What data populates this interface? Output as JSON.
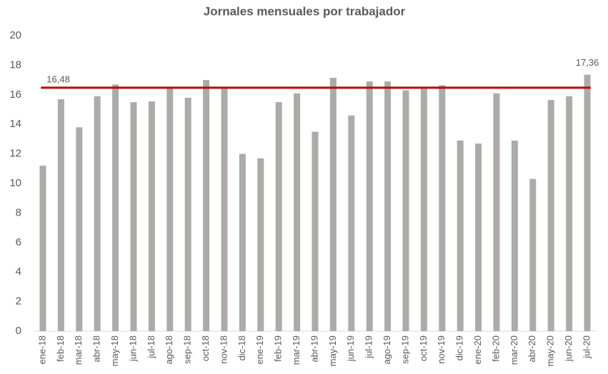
{
  "chart_data": {
    "type": "bar",
    "title": "Jornales mensuales por trabajador",
    "categories": [
      "ene-18",
      "feb-18",
      "mar-18",
      "abr-18",
      "may-18",
      "jun-18",
      "jul-18",
      "ago-18",
      "sep-18",
      "oct-18",
      "nov-18",
      "dic-18",
      "ene-19",
      "feb-19",
      "mar-19",
      "abr-19",
      "may-19",
      "jun-19",
      "jul-19",
      "ago-19",
      "sep-19",
      "oct-19",
      "nov-19",
      "dic-19",
      "ene-20",
      "feb-20",
      "mar-20",
      "abr-20",
      "may-20",
      "jun-20",
      "jul-20"
    ],
    "values": [
      11.2,
      15.7,
      13.8,
      15.9,
      16.7,
      15.5,
      15.55,
      16.5,
      15.8,
      17.0,
      16.4,
      12.0,
      11.7,
      15.5,
      16.1,
      13.5,
      17.15,
      14.6,
      16.9,
      16.9,
      16.3,
      16.4,
      16.65,
      12.9,
      12.7,
      16.1,
      12.9,
      10.3,
      15.65,
      15.9,
      17.36
    ],
    "value_labels": [
      null,
      null,
      null,
      null,
      null,
      null,
      null,
      null,
      null,
      null,
      null,
      null,
      null,
      null,
      null,
      null,
      null,
      null,
      null,
      null,
      null,
      null,
      null,
      null,
      null,
      null,
      null,
      null,
      null,
      null,
      "17,36"
    ],
    "color": "#aeaaaa",
    "reference_line": {
      "value": 16.48,
      "label": "16,48",
      "color": "#c00000"
    },
    "ylim": [
      0,
      20
    ],
    "yticks": [
      0,
      2,
      4,
      6,
      8,
      10,
      12,
      14,
      16,
      18,
      20
    ],
    "grid": false
  }
}
